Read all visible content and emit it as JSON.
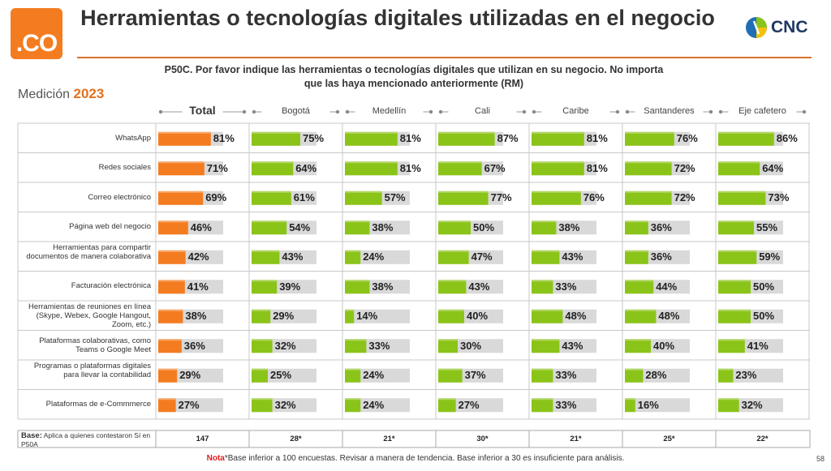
{
  "header": {
    "logo_text": ".CO",
    "title": "Herramientas o tecnologías digitales utilizadas en el negocio",
    "brand_text": "CNC",
    "question": "P50C. Por favor indique las herramientas o tecnologías digitales que utilizan  en su negocio. No importa que las haya mencionado anteriormente (RM)",
    "medicion_label": "Medición",
    "medicion_year": "2023"
  },
  "colors": {
    "total": "#f47c20",
    "region": "#8bc418",
    "track": "#d9d9d9",
    "title_rule": "#d9702a"
  },
  "chart_data": {
    "type": "bar",
    "orientation": "horizontal",
    "columns": [
      "Total",
      "Bogotá",
      "Medellín",
      "Cali",
      "Caribe",
      "Santanderes",
      "Eje cafetero"
    ],
    "categories": [
      "WhatsApp",
      "Redes sociales",
      "Correo electrónico",
      "Página web del negocio",
      "Herramientas para compartir documentos de manera colaborativa",
      "Facturación electrónica",
      "Herramientas de reuniones en línea (Skype, Webex, Google Hangout, Zoom, etc.)",
      "Plataformas colaborativas, como Teams o Google Meet",
      "Programas o plataformas digitales para llevar la contabilidad",
      "Plataformas de e-Commmerce"
    ],
    "series": [
      {
        "name": "Total",
        "values": [
          81,
          71,
          69,
          46,
          42,
          41,
          38,
          36,
          29,
          27
        ]
      },
      {
        "name": "Bogotá",
        "values": [
          75,
          64,
          61,
          54,
          43,
          39,
          29,
          32,
          25,
          32
        ]
      },
      {
        "name": "Medellín",
        "values": [
          81,
          81,
          57,
          38,
          24,
          38,
          14,
          33,
          24,
          24
        ]
      },
      {
        "name": "Cali",
        "values": [
          87,
          67,
          77,
          50,
          47,
          43,
          40,
          30,
          37,
          27
        ]
      },
      {
        "name": "Caribe",
        "values": [
          81,
          81,
          76,
          38,
          43,
          33,
          48,
          43,
          33,
          33
        ]
      },
      {
        "name": "Santanderes",
        "values": [
          76,
          72,
          72,
          36,
          36,
          44,
          48,
          40,
          28,
          16
        ]
      },
      {
        "name": "Eje cafetero",
        "values": [
          86,
          64,
          73,
          55,
          59,
          50,
          50,
          41,
          23,
          32
        ]
      }
    ],
    "value_suffix": "%",
    "xlim": [
      0,
      100
    ]
  },
  "base": {
    "label_bold": "Base:",
    "label_text": "Aplica a quienes contestaron Sí en P50A",
    "values": [
      "147",
      "28*",
      "21*",
      "30*",
      "21*",
      "25*",
      "22*"
    ]
  },
  "footnote": {
    "bold": "Nota",
    "text": "*Base inferior a 100 encuestas. Revisar a manera de tendencia. Base inferior a 30 es insuficiente para análisis."
  },
  "page_number": "58"
}
